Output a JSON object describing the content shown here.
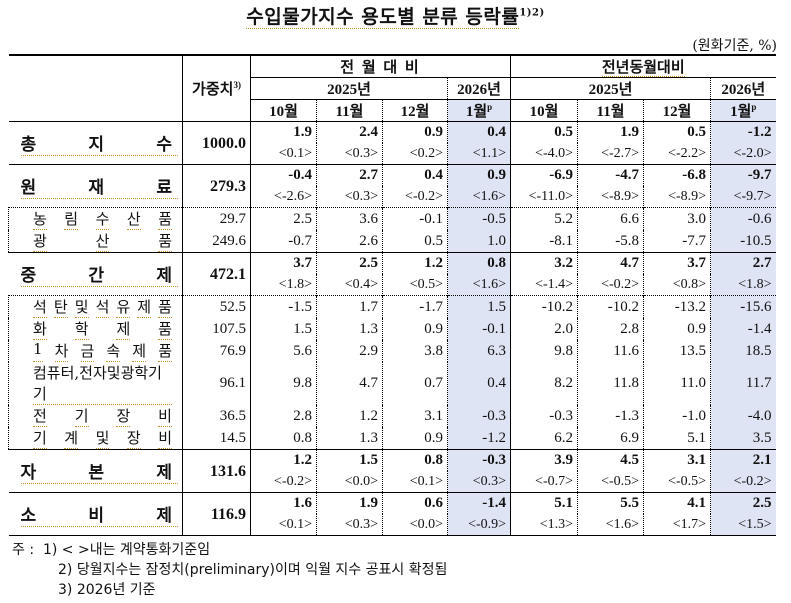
{
  "title": "수입물가지수 용도별 분류 등락률",
  "title_sup": "1)2)",
  "unit": "(원화기준, %)",
  "header": {
    "weight_label": "가중치",
    "weight_sup": "3)",
    "group_mom": "전 월 대 비",
    "group_yoy": "전년동월대비",
    "year_2025": "2025년",
    "year_2026": "2026년",
    "months": [
      "10월",
      "11월",
      "12월",
      "1월"
    ],
    "prelim_mark": "p"
  },
  "rows": [
    {
      "label": [
        "총",
        "지",
        "수"
      ],
      "type": "main",
      "weight": "1000.0",
      "mom": [
        "1.9",
        "2.4",
        "0.9",
        "0.4"
      ],
      "mom_contract": [
        "<0.1>",
        "<0.3>",
        "<0.2>",
        "<1.1>"
      ],
      "yoy": [
        "0.5",
        "1.9",
        "0.5",
        "-1.2"
      ],
      "yoy_contract": [
        "<-4.0>",
        "<-2.7>",
        "<-2.2>",
        "<-2.0>"
      ]
    },
    {
      "label": [
        "원",
        "재",
        "료"
      ],
      "type": "main",
      "weight": "279.3",
      "mom": [
        "-0.4",
        "2.7",
        "0.4",
        "0.9"
      ],
      "mom_contract": [
        "<-2.6>",
        "<0.3>",
        "<-0.2>",
        "<1.6>"
      ],
      "yoy": [
        "-6.9",
        "-4.7",
        "-6.8",
        "-9.7"
      ],
      "yoy_contract": [
        "<-11.0>",
        "<-8.9>",
        "<-8.9>",
        "<-9.7>"
      ]
    },
    {
      "label": [
        "농",
        "림",
        "수",
        "산",
        "품"
      ],
      "type": "sub",
      "weight": "29.7",
      "mom": [
        "2.5",
        "3.6",
        "-0.1",
        "-0.5"
      ],
      "yoy": [
        "5.2",
        "6.6",
        "3.0",
        "-0.6"
      ]
    },
    {
      "label": [
        "광",
        "산",
        "품"
      ],
      "type": "sub",
      "weight": "249.6",
      "mom": [
        "-0.7",
        "2.6",
        "0.5",
        "1.0"
      ],
      "yoy": [
        "-8.1",
        "-5.8",
        "-7.7",
        "-10.5"
      ]
    },
    {
      "label": [
        "중",
        "간",
        "제"
      ],
      "type": "main",
      "weight": "472.1",
      "mom": [
        "3.7",
        "2.5",
        "1.2",
        "0.8"
      ],
      "mom_contract": [
        "<1.8>",
        "<0.4>",
        "<0.5>",
        "<1.6>"
      ],
      "yoy": [
        "3.2",
        "4.7",
        "3.7",
        "2.7"
      ],
      "yoy_contract": [
        "<-1.4>",
        "<-0.2>",
        "<0.8>",
        "<1.8>"
      ]
    },
    {
      "label": [
        "석",
        "탄",
        "및",
        "석",
        "유",
        "제",
        "품"
      ],
      "type": "sub",
      "weight": "52.5",
      "mom": [
        "-1.5",
        "1.7",
        "-1.7",
        "1.5"
      ],
      "yoy": [
        "-10.2",
        "-10.2",
        "-13.2",
        "-15.6"
      ]
    },
    {
      "label": [
        "화",
        "학",
        "제",
        "품"
      ],
      "type": "sub",
      "weight": "107.5",
      "mom": [
        "1.5",
        "1.3",
        "0.9",
        "-0.1"
      ],
      "yoy": [
        "2.0",
        "2.8",
        "0.9",
        "-1.4"
      ]
    },
    {
      "label": [
        "1",
        "차",
        "금",
        "속",
        "제",
        "품"
      ],
      "type": "sub",
      "weight": "76.9",
      "mom": [
        "5.6",
        "2.9",
        "3.8",
        "6.3"
      ],
      "yoy": [
        "9.8",
        "11.6",
        "13.5",
        "18.5"
      ]
    },
    {
      "label": [
        "컴퓨터,전자및광학기기"
      ],
      "type": "sub",
      "weight": "96.1",
      "mom": [
        "9.8",
        "4.7",
        "0.7",
        "0.4"
      ],
      "yoy": [
        "8.2",
        "11.8",
        "11.0",
        "11.7"
      ]
    },
    {
      "label": [
        "전",
        "기",
        "장",
        "비"
      ],
      "type": "sub",
      "weight": "36.5",
      "mom": [
        "2.8",
        "1.2",
        "3.1",
        "-0.3"
      ],
      "yoy": [
        "-0.3",
        "-1.3",
        "-1.0",
        "-4.0"
      ]
    },
    {
      "label": [
        "기",
        "계",
        "및",
        "장",
        "비"
      ],
      "type": "sub",
      "weight": "14.5",
      "mom": [
        "0.8",
        "1.3",
        "0.9",
        "-1.2"
      ],
      "yoy": [
        "6.2",
        "6.9",
        "5.1",
        "3.5"
      ]
    },
    {
      "label": [
        "자",
        "본",
        "제"
      ],
      "type": "main",
      "weight": "131.6",
      "mom": [
        "1.2",
        "1.5",
        "0.8",
        "-0.3"
      ],
      "mom_contract": [
        "<-0.2>",
        "<0.0>",
        "<0.1>",
        "<0.3>"
      ],
      "yoy": [
        "3.9",
        "4.5",
        "3.1",
        "2.1"
      ],
      "yoy_contract": [
        "<-0.7>",
        "<-0.5>",
        "<-0.5>",
        "<-0.2>"
      ]
    },
    {
      "label": [
        "소",
        "비",
        "제"
      ],
      "type": "main",
      "weight": "116.9",
      "mom": [
        "1.6",
        "1.9",
        "0.6",
        "-1.4"
      ],
      "mom_contract": [
        "<0.1>",
        "<0.3>",
        "<0.0>",
        "<-0.9>"
      ],
      "yoy": [
        "5.1",
        "5.5",
        "4.1",
        "2.5"
      ],
      "yoy_contract": [
        "<1.3>",
        "<1.6>",
        "<1.7>",
        "<1.5>"
      ]
    }
  ],
  "notes": {
    "prefix": "주 :",
    "items": [
      "1) < >내는 계약통화기준임",
      "2) 당월지수는 잠정치(preliminary)이며 익월 지수 공표시 확정됨",
      "3) 2026년 기준"
    ]
  },
  "colors": {
    "highlight_column": "#dfe4f5",
    "rule": "#000000"
  }
}
